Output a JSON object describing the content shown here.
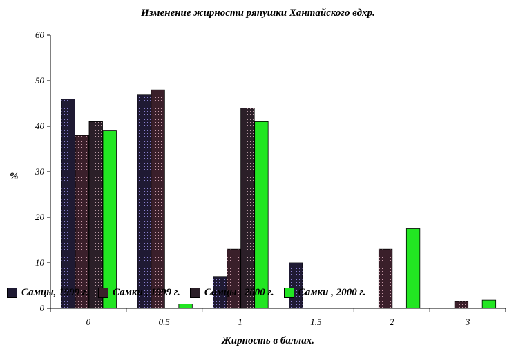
{
  "chart_data": {
    "type": "bar",
    "title": "Изменение жирности ряпушки Хантайского вдхр.",
    "xlabel": "Жирность в баллах.",
    "ylabel": "%",
    "categories": [
      "0",
      "0.5",
      "1",
      "1.5",
      "2",
      "3"
    ],
    "y_ticks": [
      "0",
      "10",
      "20",
      "30",
      "40",
      "50",
      "60"
    ],
    "ylim": [
      0,
      60
    ],
    "grid": false,
    "legend_position": "bottom-left",
    "series": [
      {
        "name": "Самцы, 1999 г.",
        "values": [
          46,
          47,
          7,
          10,
          0,
          0
        ],
        "color": "#1f1a33"
      },
      {
        "name": "Самки , 1999 г.",
        "values": [
          38,
          48,
          13,
          0,
          13,
          1.5
        ],
        "color": "#3a1f2a"
      },
      {
        "name": "Самцы , 2000 г.",
        "values": [
          41,
          0,
          44,
          0,
          0,
          0
        ],
        "color": "#2b1f28"
      },
      {
        "name": "Самки , 2000 г.",
        "values": [
          39,
          1,
          41,
          0,
          17.5,
          1.8
        ],
        "color": "#22e622"
      }
    ]
  }
}
